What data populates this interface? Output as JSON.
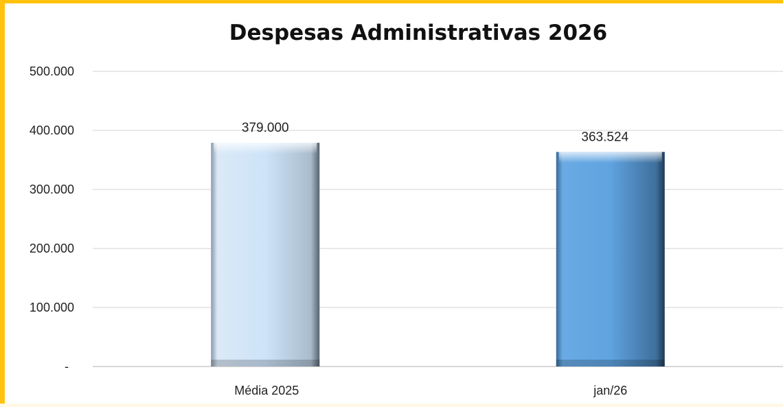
{
  "chart_data": {
    "type": "bar",
    "title": "Despesas Administrativas 2026",
    "categories": [
      "Média 2025",
      "jan/26"
    ],
    "values": [
      379000,
      363524
    ],
    "data_labels": [
      "379.000",
      "363.524"
    ],
    "ylim": [
      0,
      500000
    ],
    "y_ticks": [
      0,
      100000,
      200000,
      300000,
      400000,
      500000
    ],
    "y_tick_labels": [
      "-",
      "100.000",
      "200.000",
      "300.000",
      "400.000",
      "500.000"
    ],
    "grid": true,
    "legend": "none",
    "bar_colors": [
      "#cde3f8",
      "#5fa3e0"
    ]
  },
  "colors": {
    "frame": "#ffc20e",
    "gridline": "#d9d9d9",
    "axis": "#bfbfbf"
  }
}
